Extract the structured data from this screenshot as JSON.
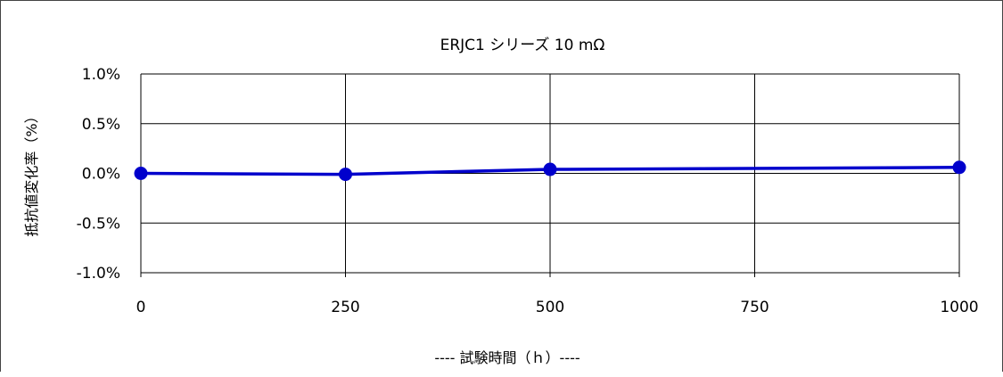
{
  "chart_data": {
    "type": "line",
    "title": "ERJC1 シリーズ 10 mΩ",
    "xlabel": "---- 試験時間（ｈ）----",
    "ylabel": "抵抗値変化率（%）",
    "xlim": [
      0,
      1000
    ],
    "ylim": [
      -1.0,
      1.0
    ],
    "x_ticks": [
      0,
      250,
      500,
      750,
      1000
    ],
    "x_tick_labels": [
      "0",
      "250",
      "500",
      "750",
      "1000"
    ],
    "y_ticks": [
      1.0,
      0.5,
      0.0,
      -0.5,
      -1.0
    ],
    "y_tick_labels": [
      "1.0%",
      "0.5%",
      "0.0%",
      "-0.5%",
      "-1.0%"
    ],
    "grid": true,
    "series": [
      {
        "x": [
          0,
          250,
          500,
          1000
        ],
        "y": [
          0.0,
          -0.01,
          0.04,
          0.06
        ],
        "color": "#0000cc"
      }
    ]
  }
}
